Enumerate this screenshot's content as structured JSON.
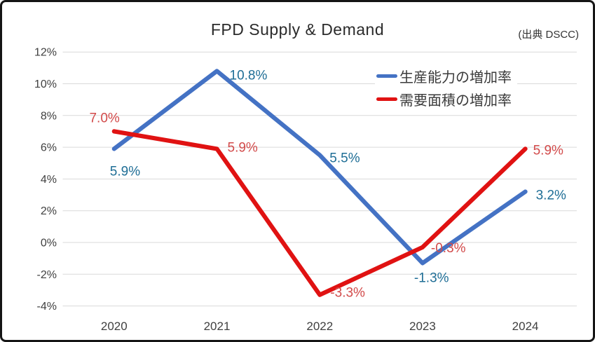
{
  "frame": {
    "background": "#ffffff",
    "border_color": "#151515"
  },
  "chart_data": {
    "type": "line",
    "title": "FPD Supply & Demand",
    "source_note": "(出典 DSCC)",
    "categories": [
      "2020",
      "2021",
      "2022",
      "2023",
      "2024"
    ],
    "series": [
      {
        "name": "生産能力の増加率",
        "color": "#4472C4",
        "label_color": "#1F6E96",
        "values": [
          5.9,
          10.8,
          5.5,
          -1.3,
          3.2
        ],
        "labels": [
          "5.9%",
          "10.8%",
          "5.5%",
          "-1.3%",
          "3.2%"
        ]
      },
      {
        "name": "需要面積の増加率",
        "color": "#E01212",
        "label_color": "#D24A4A",
        "values": [
          7.0,
          5.9,
          -3.3,
          -0.3,
          5.9
        ],
        "labels": [
          "7.0%",
          "5.9%",
          "-3.3%",
          "-0.3%",
          "5.9%"
        ]
      }
    ],
    "ylim": [
      -4,
      12
    ],
    "yticks": [
      {
        "value": 12,
        "label": "12%"
      },
      {
        "value": 10,
        "label": "10%"
      },
      {
        "value": 8,
        "label": "8%"
      },
      {
        "value": 6,
        "label": "6%"
      },
      {
        "value": 4,
        "label": "4%"
      },
      {
        "value": 2,
        "label": "2%"
      },
      {
        "value": 0,
        "label": "0%"
      },
      {
        "value": -2,
        "label": "-2%"
      },
      {
        "value": -4,
        "label": "-4%"
      }
    ],
    "grid": true,
    "gridline_color": "#D9D9D9",
    "axis_label_color": "#404040",
    "legend_position": "inside-top-right"
  }
}
